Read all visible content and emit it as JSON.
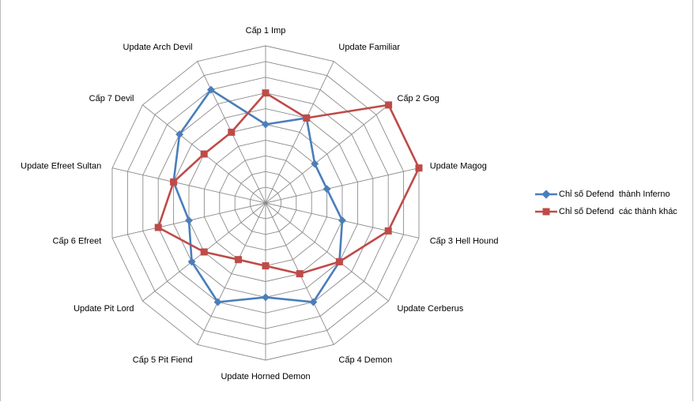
{
  "chart_data": {
    "type": "radar",
    "categories": [
      "Cấp 1 Imp",
      "Update Familiar",
      "Cấp 2 Gog",
      "Update Magog",
      "Cấp 3 Hell Hound",
      "Update Cerberus",
      "Cấp 4 Demon",
      "Update Horned Demon",
      "Cấp 5 Pit Fiend",
      "Update Pit Lord",
      "Cấp 6 Efreet",
      "Update Efreet Sultan",
      "Cấp 7 Devil",
      "Update Arch Devil"
    ],
    "series": [
      {
        "name": "Chỉ số Defend  thành Inferno",
        "color": "#4a7ebb",
        "marker": "diamond",
        "values": [
          5,
          6,
          4,
          4,
          5,
          6,
          7,
          6,
          7,
          6,
          5,
          6,
          7,
          8
        ]
      },
      {
        "name": "Chỉ số Defend  các thành khác",
        "color": "#be4b48",
        "marker": "square",
        "values": [
          7,
          6,
          10,
          10,
          8,
          6,
          5,
          4,
          4,
          5,
          7,
          6,
          5,
          5
        ]
      }
    ],
    "rlim": [
      0,
      10
    ],
    "gridlines": true,
    "legend_position": "right"
  }
}
